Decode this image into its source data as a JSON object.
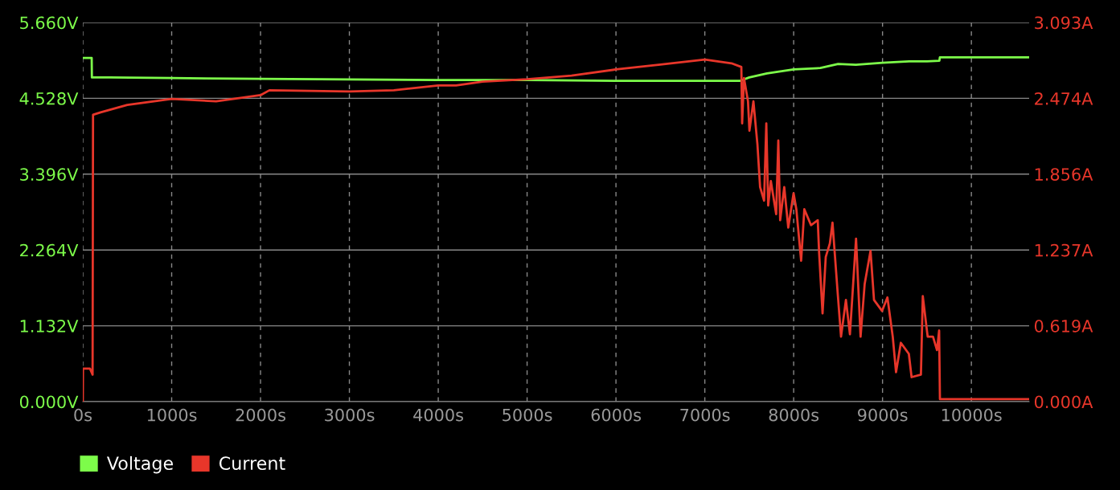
{
  "chart_data": {
    "type": "line",
    "legend": "bottom left",
    "grid": true,
    "marker": "none",
    "line_style": "solid",
    "xlim": [
      0,
      10650
    ],
    "xticks": [
      {
        "value": 0,
        "label": "0s"
      },
      {
        "value": 1000,
        "label": "1000s"
      },
      {
        "value": 2000,
        "label": "2000s"
      },
      {
        "value": 3000,
        "label": "3000s"
      },
      {
        "value": 4000,
        "label": "4000s"
      },
      {
        "value": 5000,
        "label": "5000s"
      },
      {
        "value": 6000,
        "label": "6000s"
      },
      {
        "value": 7000,
        "label": "7000s"
      },
      {
        "value": 8000,
        "label": "8000s"
      },
      {
        "value": 9000,
        "label": "9000s"
      },
      {
        "value": 10000,
        "label": "10000s"
      }
    ],
    "ylim": [
      0,
      5.66
    ],
    "yticks": [
      {
        "value": 0,
        "label": "0.000V"
      },
      {
        "value": 1.132,
        "label": "1.132V"
      },
      {
        "value": 2.264,
        "label": "2.264V"
      },
      {
        "value": 3.396,
        "label": "3.396V"
      },
      {
        "value": 4.528,
        "label": "4.528V"
      },
      {
        "value": 5.66,
        "label": "5.660V"
      }
    ],
    "y2lim": [
      0,
      3.093
    ],
    "y2ticks": [
      {
        "value": 0,
        "label": "0.000A"
      },
      {
        "value": 0.619,
        "label": "0.619A"
      },
      {
        "value": 1.237,
        "label": "1.237A"
      },
      {
        "value": 1.856,
        "label": "1.856A"
      },
      {
        "value": 2.474,
        "label": "2.474A"
      },
      {
        "value": 3.093,
        "label": "3.093A"
      }
    ],
    "series": [
      {
        "name": "Voltage",
        "color": "#7dfc4a",
        "x": [
          0,
          100,
          102,
          300,
          1000,
          2000,
          3000,
          4000,
          5000,
          6000,
          7000,
          7400,
          7500,
          7700,
          8000,
          8300,
          8500,
          8700,
          9000,
          9300,
          9500,
          9640,
          9645,
          10650
        ],
        "values": [
          5.13,
          5.13,
          4.84,
          4.84,
          4.83,
          4.82,
          4.81,
          4.8,
          4.8,
          4.79,
          4.79,
          4.79,
          4.84,
          4.9,
          4.96,
          4.98,
          5.04,
          5.03,
          5.06,
          5.08,
          5.08,
          5.09,
          5.14,
          5.14
        ]
      },
      {
        "name": "Current",
        "color": "#e8362a",
        "axis": "y2",
        "x": [
          0,
          2,
          80,
          110,
          115,
          200,
          500,
          1000,
          1500,
          2000,
          2100,
          3000,
          3500,
          4000,
          4200,
          4500,
          5000,
          5500,
          6000,
          6500,
          7000,
          7300,
          7411,
          7420,
          7441,
          7486,
          7502,
          7547,
          7592,
          7622,
          7667,
          7692,
          7713,
          7743,
          7803,
          7827,
          7848,
          7894,
          7939,
          7999,
          8030,
          8084,
          8120,
          8195,
          8271,
          8286,
          8325,
          8361,
          8407,
          8437,
          8497,
          8533,
          8588,
          8633,
          8702,
          8753,
          8799,
          8865,
          8904,
          8995,
          9055,
          9115,
          9152,
          9206,
          9296,
          9327,
          9432,
          9453,
          9508,
          9568,
          9613,
          9637,
          9646,
          10650
        ],
        "values": [
          0,
          0.27,
          0.27,
          0.22,
          2.34,
          2.36,
          2.42,
          2.47,
          2.45,
          2.5,
          2.54,
          2.53,
          2.54,
          2.58,
          2.58,
          2.61,
          2.63,
          2.66,
          2.71,
          2.75,
          2.79,
          2.76,
          2.73,
          2.27,
          2.64,
          2.45,
          2.21,
          2.45,
          2.1,
          1.75,
          1.64,
          2.27,
          1.6,
          1.8,
          1.53,
          2.13,
          1.48,
          1.75,
          1.42,
          1.7,
          1.57,
          1.15,
          1.57,
          1.44,
          1.48,
          1.22,
          0.72,
          1.18,
          1.29,
          1.46,
          0.87,
          0.53,
          0.83,
          0.55,
          1.33,
          0.53,
          0.96,
          1.23,
          0.83,
          0.74,
          0.85,
          0.53,
          0.24,
          0.48,
          0.39,
          0.2,
          0.22,
          0.86,
          0.53,
          0.53,
          0.42,
          0.58,
          0.02,
          0.02
        ]
      }
    ]
  }
}
